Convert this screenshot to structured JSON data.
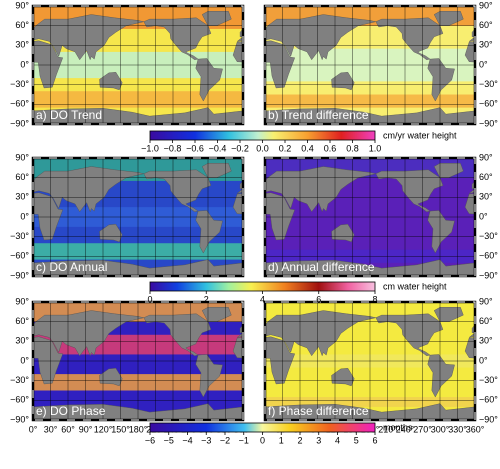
{
  "panels": [
    {
      "label": "a) DO Trend"
    },
    {
      "label": "b) Trend difference"
    },
    {
      "label": "c) DO Annual"
    },
    {
      "label": "d) Annual difference"
    },
    {
      "label": "e) DO Phase"
    },
    {
      "label": "f) Phase difference"
    }
  ],
  "lat_ticks": [
    {
      "value": 90,
      "label": "90°"
    },
    {
      "value": 60,
      "label": "60°"
    },
    {
      "value": 30,
      "label": "30°"
    },
    {
      "value": 0,
      "label": "0°"
    },
    {
      "value": -30,
      "label": "−30°"
    },
    {
      "value": -60,
      "label": "−60°"
    },
    {
      "value": -90,
      "label": "−90°"
    }
  ],
  "lon_ticks": [
    {
      "value": 0,
      "label": "0°"
    },
    {
      "value": 30,
      "label": "30°"
    },
    {
      "value": 60,
      "label": "60°"
    },
    {
      "value": 90,
      "label": "90°"
    },
    {
      "value": 120,
      "label": "120°"
    },
    {
      "value": 150,
      "label": "150°"
    },
    {
      "value": 180,
      "label": "180°"
    },
    {
      "value": 210,
      "label": "210°"
    },
    {
      "value": 240,
      "label": "240°"
    },
    {
      "value": 270,
      "label": "270°"
    },
    {
      "value": 300,
      "label": "300°"
    },
    {
      "value": 330,
      "label": "330°"
    },
    {
      "value": 360,
      "label": "360°"
    }
  ],
  "colorbars": [
    {
      "unit": "cm/yr water height",
      "ticks": [
        {
          "value": -1.0,
          "label": "−1.0"
        },
        {
          "value": -0.8,
          "label": "−0.8"
        },
        {
          "value": -0.6,
          "label": "−0.6"
        },
        {
          "value": -0.4,
          "label": "−0.4"
        },
        {
          "value": -0.2,
          "label": "−0.2"
        },
        {
          "value": 0,
          "label": "0.0"
        },
        {
          "value": 0.2,
          "label": "0.2"
        },
        {
          "value": 0.4,
          "label": "0.4"
        },
        {
          "value": 0.6,
          "label": "0.6"
        },
        {
          "value": 0.8,
          "label": "0.8"
        },
        {
          "value": 1,
          "label": "1.0"
        }
      ]
    },
    {
      "unit": "cm water height",
      "ticks": [
        0,
        2,
        4,
        6,
        8
      ]
    },
    {
      "unit": "months",
      "ticks": [
        {
          "value": -6,
          "label": "−6"
        },
        {
          "value": -5,
          "label": "−5"
        },
        {
          "value": -4,
          "label": "−4"
        },
        {
          "value": -3,
          "label": "−3"
        },
        {
          "value": -2,
          "label": "−2"
        },
        {
          "value": -1,
          "label": "−1"
        },
        0,
        1,
        2,
        3,
        4,
        5,
        6
      ]
    }
  ]
}
